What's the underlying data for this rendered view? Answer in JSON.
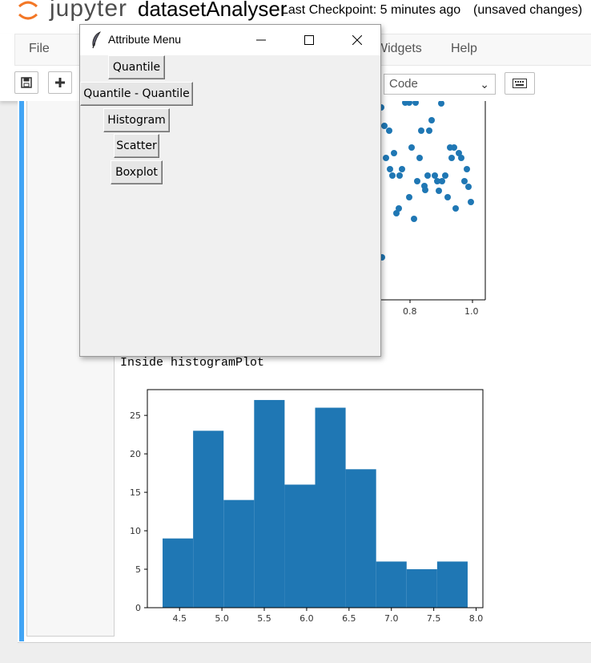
{
  "header": {
    "logo_text": "jupyter",
    "notebook_title": "datasetAnalyser",
    "checkpoint": "Last Checkpoint: 5 minutes ago",
    "autosave_status": "(unsaved changes)"
  },
  "menubar": {
    "file": "File",
    "widgets": "Widgets",
    "help": "Help"
  },
  "toolbar": {
    "save_icon": "floppy-icon",
    "add_icon": "plus-icon",
    "cell_type": "Code",
    "keyboard_icon": "keyboard-icon"
  },
  "dialog": {
    "title": "Attribute Menu",
    "buttons": [
      "Quantile",
      "Quantile - Quantile",
      "Histogram",
      "Scatter",
      "Boxplot"
    ]
  },
  "output": {
    "text": "Inside histogramPlot"
  },
  "colors": {
    "bar": "#1f77b4",
    "cell_selected": "#42a5f5",
    "jupyter_orange": "#f37726"
  },
  "scatter_chart": {
    "x_ticks": [
      "0.8",
      "1.0"
    ]
  },
  "chart_data": {
    "type": "bar",
    "title": "",
    "xlabel": "",
    "ylabel": "",
    "bin_edges": [
      4.3,
      4.66,
      5.02,
      5.38,
      5.74,
      6.1,
      6.46,
      6.82,
      7.18,
      7.54,
      7.9
    ],
    "values": [
      9,
      23,
      14,
      27,
      16,
      26,
      18,
      6,
      5,
      6
    ],
    "xlim": [
      4.12,
      8.08
    ],
    "ylim": [
      0,
      28.35
    ],
    "x_ticks": [
      "4.5",
      "5.0",
      "5.5",
      "6.0",
      "6.5",
      "7.0",
      "7.5",
      "8.0"
    ],
    "y_ticks": [
      "0",
      "5",
      "10",
      "15",
      "20",
      "25"
    ]
  }
}
